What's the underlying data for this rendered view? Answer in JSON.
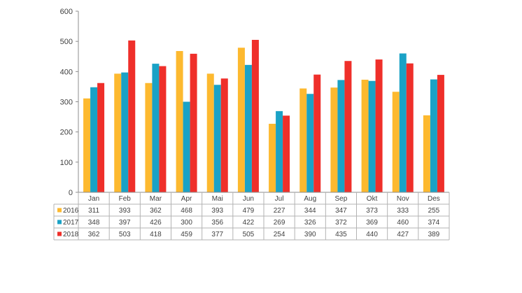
{
  "chart_data": {
    "type": "bar",
    "title": "",
    "xlabel": "",
    "ylabel": "",
    "ylim": [
      0,
      600
    ],
    "yticks": [
      0,
      100,
      200,
      300,
      400,
      500,
      600
    ],
    "grid": false,
    "legend": "data-table",
    "categories": [
      "Jan",
      "Feb",
      "Mar",
      "Apr",
      "Mai",
      "Jun",
      "Jul",
      "Aug",
      "Sep",
      "Okt",
      "Nov",
      "Des"
    ],
    "series": [
      {
        "name": "2016",
        "color": "#FDB92F",
        "values": [
          311,
          393,
          362,
          468,
          393,
          479,
          227,
          344,
          347,
          373,
          333,
          255
        ]
      },
      {
        "name": "2017",
        "color": "#1AA2C6",
        "values": [
          348,
          397,
          426,
          300,
          356,
          422,
          269,
          326,
          372,
          369,
          460,
          374
        ]
      },
      {
        "name": "2018",
        "color": "#EF2F2A",
        "values": [
          362,
          503,
          418,
          459,
          377,
          505,
          254,
          390,
          435,
          440,
          427,
          389
        ]
      }
    ]
  }
}
